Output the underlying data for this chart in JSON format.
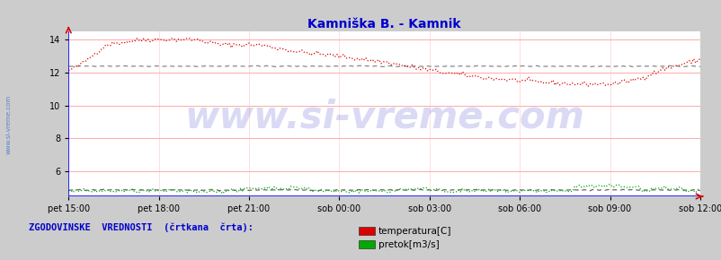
{
  "title": "Kamniška B. - Kamnik",
  "title_color": "#0000cc",
  "title_fontsize": 10,
  "bg_color": "#cccccc",
  "plot_bg_color": "#ffffff",
  "x_labels": [
    "pet 15:00",
    "pet 18:00",
    "pet 21:00",
    "sob 00:00",
    "sob 03:00",
    "sob 06:00",
    "sob 09:00",
    "sob 12:00"
  ],
  "x_ticks_norm": [
    0.0,
    0.142857,
    0.285714,
    0.428571,
    0.571429,
    0.714286,
    0.857143,
    1.0
  ],
  "ylim": [
    4.5,
    14.5
  ],
  "yticks": [
    6,
    8,
    10,
    12,
    14
  ],
  "grid_h_color": "#ffaaaa",
  "grid_v_color": "#ffdddd",
  "bottom_line_color": "#0000ff",
  "tick_color": "#000000",
  "temp_color": "#dd0000",
  "flow_color": "#00aa00",
  "hist_temp_color": "#888888",
  "hist_flow_color": "#666666",
  "watermark_text": "www.si-vreme.com",
  "watermark_color": "#3333cc",
  "watermark_alpha": 0.18,
  "watermark_fontsize": 30,
  "sidebar_text": "www.si-vreme.com",
  "sidebar_color": "#3366cc",
  "legend_text": "ZGODOVINSKE  VREDNOSTI  (črtkana  črta):",
  "legend_color": "#0000cc",
  "legend_fontsize": 7.5,
  "legend_items": [
    "temperatura[C]",
    "pretok[m3/s]"
  ],
  "legend_item_colors": [
    "#dd0000",
    "#00aa00"
  ],
  "n_points": 288
}
